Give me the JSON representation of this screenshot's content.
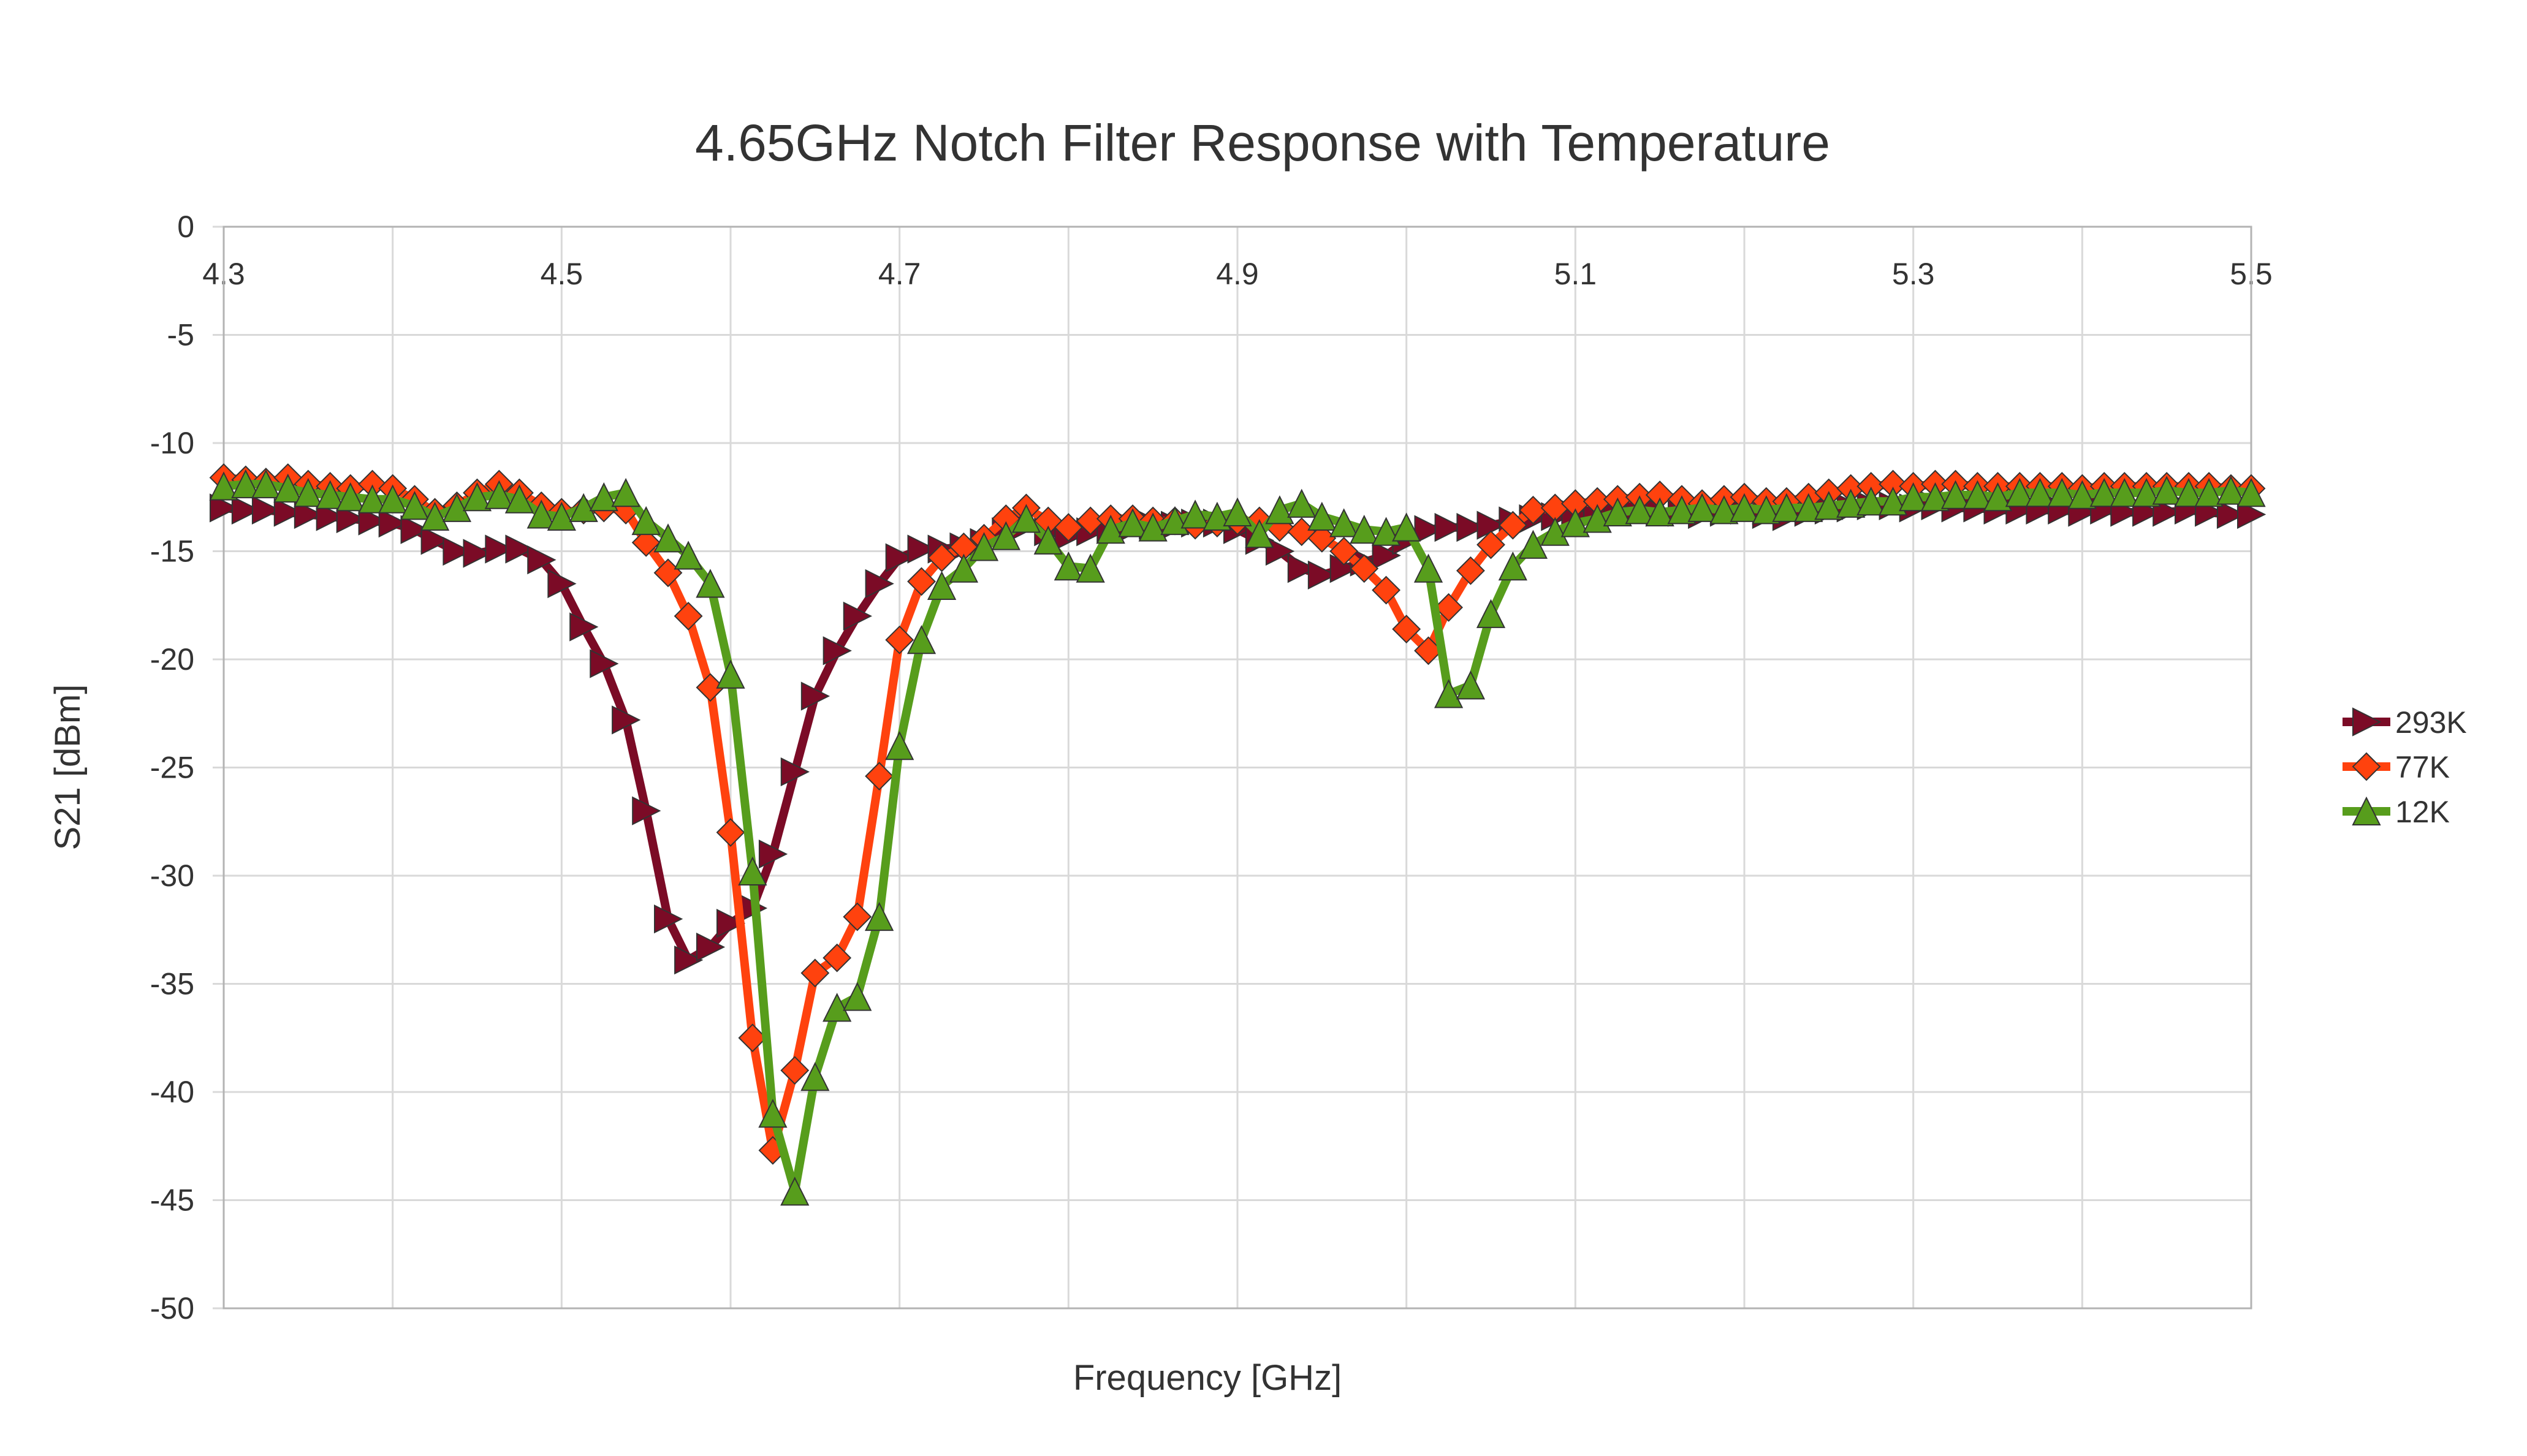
{
  "chart_data": {
    "type": "line",
    "title": "4.65GHz Notch Filter Response with Temperature",
    "xlabel": "Frequency [GHz]",
    "ylabel": "S21 [dBm]",
    "xlim": [
      4.3,
      5.5
    ],
    "ylim": [
      -50,
      0
    ],
    "x_ticks": [
      "4.3",
      "4.5",
      "4.7",
      "4.9",
      "5.1",
      "5.3",
      "5.5"
    ],
    "y_ticks": [
      "0",
      "-5",
      "-10",
      "-15",
      "-20",
      "-25",
      "-30",
      "-35",
      "-40",
      "-45",
      "-50"
    ],
    "x_grid_step": 0.1,
    "x_tick_label_position": "top",
    "grid": true,
    "legend": "right",
    "series": [
      {
        "name": "293K",
        "color": "#7b0b26",
        "marker": "triangle-right",
        "x": [
          4.3,
          4.313,
          4.325,
          4.338,
          4.35,
          4.363,
          4.375,
          4.388,
          4.4,
          4.413,
          4.425,
          4.438,
          4.45,
          4.463,
          4.475,
          4.488,
          4.5,
          4.513,
          4.525,
          4.538,
          4.55,
          4.563,
          4.575,
          4.588,
          4.6,
          4.613,
          4.625,
          4.638,
          4.65,
          4.663,
          4.675,
          4.688,
          4.7,
          4.713,
          4.725,
          4.738,
          4.75,
          4.763,
          4.775,
          4.788,
          4.8,
          4.813,
          4.825,
          4.838,
          4.85,
          4.863,
          4.875,
          4.888,
          4.9,
          4.913,
          4.925,
          4.938,
          4.95,
          4.963,
          4.975,
          4.988,
          5.0,
          5.013,
          5.025,
          5.038,
          5.05,
          5.063,
          5.075,
          5.088,
          5.1,
          5.113,
          5.125,
          5.138,
          5.15,
          5.163,
          5.175,
          5.188,
          5.2,
          5.213,
          5.225,
          5.238,
          5.25,
          5.263,
          5.275,
          5.288,
          5.3,
          5.313,
          5.325,
          5.338,
          5.35,
          5.363,
          5.375,
          5.388,
          5.4,
          5.413,
          5.425,
          5.438,
          5.45,
          5.463,
          5.475,
          5.488,
          5.5
        ],
        "y": [
          -13.0,
          -13.1,
          -13.1,
          -13.2,
          -13.3,
          -13.4,
          -13.5,
          -13.6,
          -13.7,
          -14.0,
          -14.5,
          -15.0,
          -15.1,
          -14.9,
          -14.9,
          -15.4,
          -16.5,
          -18.5,
          -20.2,
          -22.8,
          -27.0,
          -32.0,
          -33.9,
          -33.3,
          -32.2,
          -31.5,
          -29.0,
          -25.2,
          -21.7,
          -19.6,
          -18.0,
          -16.5,
          -15.3,
          -14.9,
          -14.9,
          -14.8,
          -14.6,
          -14.1,
          -13.8,
          -14.1,
          -14.3,
          -14.1,
          -14.0,
          -13.9,
          -13.8,
          -13.8,
          -13.7,
          -13.7,
          -14.0,
          -14.5,
          -15.0,
          -15.8,
          -16.1,
          -15.8,
          -15.5,
          -15.2,
          -14.5,
          -14.0,
          -13.9,
          -13.9,
          -13.8,
          -13.6,
          -13.5,
          -13.4,
          -13.3,
          -13.2,
          -13.1,
          -13.0,
          -13.2,
          -13.2,
          -13.3,
          -13.2,
          -13.1,
          -13.3,
          -13.4,
          -13.2,
          -13.1,
          -13.0,
          -12.9,
          -12.9,
          -13.0,
          -12.9,
          -13.0,
          -13.0,
          -13.1,
          -13.1,
          -13.1,
          -13.1,
          -13.2,
          -13.1,
          -13.2,
          -13.2,
          -13.2,
          -13.1,
          -13.2,
          -13.3,
          -13.3
        ]
      },
      {
        "name": "77K",
        "color": "#ff420e",
        "marker": "diamond",
        "x": [
          4.3,
          4.313,
          4.325,
          4.338,
          4.35,
          4.363,
          4.375,
          4.388,
          4.4,
          4.413,
          4.425,
          4.438,
          4.45,
          4.463,
          4.475,
          4.488,
          4.5,
          4.513,
          4.525,
          4.538,
          4.55,
          4.563,
          4.575,
          4.588,
          4.6,
          4.613,
          4.625,
          4.638,
          4.65,
          4.663,
          4.675,
          4.688,
          4.7,
          4.713,
          4.725,
          4.738,
          4.75,
          4.763,
          4.775,
          4.788,
          4.8,
          4.813,
          4.825,
          4.838,
          4.85,
          4.863,
          4.875,
          4.888,
          4.9,
          4.913,
          4.925,
          4.938,
          4.95,
          4.963,
          4.975,
          4.988,
          5.0,
          5.013,
          5.025,
          5.038,
          5.05,
          5.063,
          5.075,
          5.088,
          5.1,
          5.113,
          5.125,
          5.138,
          5.15,
          5.163,
          5.175,
          5.188,
          5.2,
          5.213,
          5.225,
          5.238,
          5.25,
          5.263,
          5.275,
          5.288,
          5.3,
          5.313,
          5.325,
          5.338,
          5.35,
          5.363,
          5.375,
          5.388,
          5.4,
          5.413,
          5.425,
          5.438,
          5.45,
          5.463,
          5.475,
          5.488,
          5.5
        ],
        "y": [
          -11.6,
          -11.7,
          -11.8,
          -11.6,
          -11.9,
          -12.0,
          -12.1,
          -11.9,
          -12.1,
          -12.6,
          -13.2,
          -12.9,
          -12.3,
          -11.9,
          -12.3,
          -12.9,
          -13.2,
          -13.1,
          -13.0,
          -13.1,
          -14.6,
          -16.0,
          -18.0,
          -21.3,
          -28.0,
          -37.5,
          -42.7,
          -39.0,
          -34.5,
          -33.8,
          -31.9,
          -25.4,
          -19.1,
          -16.4,
          -15.3,
          -14.8,
          -14.4,
          -13.5,
          -13.0,
          -13.6,
          -13.9,
          -13.6,
          -13.5,
          -13.5,
          -13.6,
          -13.6,
          -13.8,
          -13.7,
          -13.6,
          -13.6,
          -13.9,
          -14.1,
          -14.4,
          -15.0,
          -15.8,
          -16.8,
          -18.6,
          -19.6,
          -17.6,
          -15.9,
          -14.7,
          -13.8,
          -13.1,
          -13.0,
          -12.8,
          -12.7,
          -12.6,
          -12.5,
          -12.4,
          -12.6,
          -12.8,
          -12.6,
          -12.5,
          -12.7,
          -12.7,
          -12.5,
          -12.3,
          -12.1,
          -12.0,
          -11.9,
          -12.0,
          -11.9,
          -11.9,
          -12.0,
          -12.0,
          -12.0,
          -12.0,
          -12.0,
          -12.1,
          -12.0,
          -12.0,
          -12.0,
          -12.0,
          -12.0,
          -12.0,
          -12.1,
          -12.1
        ]
      },
      {
        "name": "12K",
        "color": "#579d1c",
        "marker": "triangle-up",
        "x": [
          4.3,
          4.313,
          4.325,
          4.338,
          4.35,
          4.363,
          4.375,
          4.388,
          4.4,
          4.413,
          4.425,
          4.438,
          4.45,
          4.463,
          4.475,
          4.488,
          4.5,
          4.513,
          4.525,
          4.538,
          4.55,
          4.563,
          4.575,
          4.588,
          4.6,
          4.613,
          4.625,
          4.638,
          4.65,
          4.663,
          4.675,
          4.688,
          4.7,
          4.713,
          4.725,
          4.738,
          4.75,
          4.763,
          4.775,
          4.788,
          4.8,
          4.813,
          4.825,
          4.838,
          4.85,
          4.863,
          4.875,
          4.888,
          4.9,
          4.913,
          4.925,
          4.938,
          4.95,
          4.963,
          4.975,
          4.988,
          5.0,
          5.013,
          5.025,
          5.038,
          5.05,
          5.063,
          5.075,
          5.088,
          5.1,
          5.113,
          5.125,
          5.138,
          5.15,
          5.163,
          5.175,
          5.188,
          5.2,
          5.213,
          5.225,
          5.238,
          5.25,
          5.263,
          5.275,
          5.288,
          5.3,
          5.313,
          5.325,
          5.338,
          5.35,
          5.363,
          5.375,
          5.388,
          5.4,
          5.413,
          5.425,
          5.438,
          5.45,
          5.463,
          5.475,
          5.488,
          5.5
        ],
        "y": [
          -12.0,
          -11.9,
          -11.9,
          -12.1,
          -12.3,
          -12.4,
          -12.5,
          -12.6,
          -12.6,
          -12.9,
          -13.4,
          -13.0,
          -12.5,
          -12.4,
          -12.6,
          -13.3,
          -13.4,
          -13.0,
          -12.5,
          -12.3,
          -13.6,
          -14.4,
          -15.2,
          -16.5,
          -20.7,
          -29.8,
          -41.0,
          -44.6,
          -39.3,
          -36.1,
          -35.6,
          -31.9,
          -24.0,
          -19.1,
          -16.6,
          -15.8,
          -14.8,
          -14.3,
          -13.5,
          -14.5,
          -15.7,
          -15.8,
          -14.0,
          -13.7,
          -13.9,
          -13.6,
          -13.3,
          -13.4,
          -13.2,
          -14.2,
          -13.1,
          -12.8,
          -13.4,
          -13.7,
          -14.0,
          -14.1,
          -13.9,
          -15.8,
          -21.6,
          -21.2,
          -17.9,
          -15.7,
          -14.7,
          -14.1,
          -13.7,
          -13.5,
          -13.2,
          -13.1,
          -13.2,
          -13.1,
          -13.0,
          -13.1,
          -13.0,
          -13.1,
          -13.0,
          -13.0,
          -12.9,
          -12.8,
          -12.7,
          -12.7,
          -12.5,
          -12.5,
          -12.4,
          -12.4,
          -12.5,
          -12.3,
          -12.3,
          -12.3,
          -12.4,
          -12.3,
          -12.3,
          -12.3,
          -12.2,
          -12.3,
          -12.3,
          -12.2,
          -12.3
        ]
      }
    ]
  }
}
